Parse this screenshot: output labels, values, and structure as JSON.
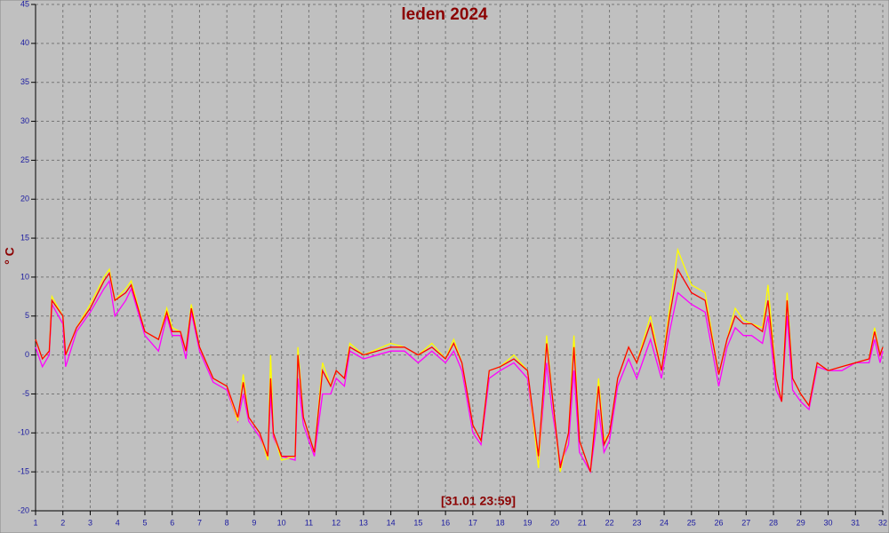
{
  "chart_data": {
    "type": "line",
    "title": "leden 2024",
    "y_label": "° C",
    "annotation": "[31.01 23:59]",
    "x": [
      1,
      1.25,
      1.5,
      1.6,
      2,
      2.1,
      2.5,
      3,
      3.5,
      3.7,
      3.9,
      4.3,
      4.5,
      5,
      5.5,
      5.8,
      6,
      6.3,
      6.5,
      6.7,
      7,
      7.5,
      8,
      8.4,
      8.6,
      8.8,
      9.2,
      9.5,
      9.6,
      9.7,
      10,
      10.5,
      10.6,
      10.8,
      11.2,
      11.5,
      11.8,
      12,
      12.3,
      12.5,
      13,
      14,
      14.5,
      15,
      15.5,
      16,
      16.3,
      16.6,
      17,
      17.3,
      17.6,
      18,
      18.5,
      19,
      19.4,
      19.7,
      19.9,
      20.2,
      20.5,
      20.7,
      20.9,
      21.3,
      21.6,
      21.8,
      22,
      22.3,
      22.7,
      23,
      23.5,
      23.9,
      24.2,
      24.5,
      25,
      25.5,
      26,
      26.3,
      26.6,
      26.9,
      27.2,
      27.6,
      27.8,
      28.1,
      28.3,
      28.5,
      28.7,
      29,
      29.3,
      29.6,
      30,
      30.5,
      31,
      31.5,
      31.7,
      31.9,
      32
    ],
    "series": [
      {
        "color": "#ff00ff",
        "values": [
          1,
          -1.5,
          0,
          6.5,
          4,
          -1.5,
          3,
          5.5,
          8.5,
          9.5,
          5,
          7,
          8.5,
          2.5,
          0.5,
          5,
          2.5,
          2.5,
          -0.5,
          5.5,
          0.5,
          -3.5,
          -4.5,
          -8.5,
          -5,
          -8.5,
          -10.5,
          -13,
          -5,
          -10.5,
          -13,
          -13.5,
          -3,
          -9,
          -13,
          -5,
          -5,
          -3,
          -4,
          0.5,
          -0.5,
          0.5,
          0.5,
          -1,
          0.5,
          -1,
          0.5,
          -2,
          -10,
          -11.5,
          -3,
          -2,
          -1,
          -3,
          -14,
          -1,
          -7,
          -14,
          -11.5,
          -2,
          -12.5,
          -15,
          -7,
          -12.5,
          -11,
          -4,
          -0.5,
          -3,
          2,
          -3,
          3,
          8,
          6.5,
          5.5,
          -4,
          1,
          3.5,
          2.5,
          2.5,
          1.5,
          5,
          -4.5,
          -6,
          5,
          -4.5,
          -6,
          -7,
          -1.5,
          -2,
          -2,
          -1,
          -1,
          2,
          -1,
          0.5
        ]
      },
      {
        "color": "#ffff00",
        "values": [
          2,
          -0.5,
          0.5,
          7.5,
          5,
          0,
          3.5,
          6.5,
          10,
          11,
          7,
          8.5,
          9.5,
          3,
          2,
          6,
          3.5,
          3,
          0.5,
          6.5,
          1,
          -3,
          -4,
          -8.5,
          -2.5,
          -8,
          -10,
          -13.5,
          0,
          -10,
          -13.5,
          -13,
          1,
          -8,
          -12.5,
          -1,
          -4,
          -2,
          -3,
          1.5,
          0,
          1.5,
          1,
          0,
          1.5,
          -0.5,
          2,
          -1,
          -9,
          -11,
          -2,
          -1.5,
          0,
          -2,
          -14.5,
          2.5,
          -5,
          -15,
          -10,
          2.5,
          -11,
          -15,
          -3,
          -11,
          -10,
          -3,
          1,
          -1,
          5,
          -2,
          6,
          13.5,
          9,
          8,
          -2.5,
          2,
          6,
          4.5,
          4,
          3.5,
          9,
          -3,
          -6,
          8,
          -3,
          -5,
          -6.5,
          -1,
          -2,
          -1.5,
          -1,
          -0.5,
          3.5,
          0,
          1
        ]
      },
      {
        "color": "#ff0000",
        "values": [
          2,
          -0.5,
          0.5,
          7,
          5,
          0,
          3.5,
          6,
          9.5,
          10.5,
          7,
          8,
          9,
          3,
          2,
          5.5,
          3,
          3,
          0.5,
          6,
          1,
          -3,
          -4,
          -8,
          -3.5,
          -8,
          -10,
          -13,
          -3,
          -10,
          -13,
          -13,
          0,
          -8,
          -12.5,
          -2,
          -4,
          -2,
          -3,
          1,
          0,
          1,
          1,
          0,
          1,
          -0.5,
          1.5,
          -1,
          -9,
          -11,
          -2,
          -1.5,
          -0.5,
          -2,
          -13,
          1.5,
          -5,
          -14.5,
          -10,
          1,
          -11,
          -15,
          -4,
          -11.5,
          -10,
          -3,
          1,
          -1,
          4,
          -2,
          5,
          11,
          8,
          7,
          -2.5,
          2,
          5,
          4,
          4,
          3,
          7,
          -3,
          -6,
          7,
          -3,
          -5,
          -6.5,
          -1,
          -2,
          -1.5,
          -1,
          -0.5,
          3,
          0,
          1
        ]
      }
    ],
    "xlim": [
      1,
      32
    ],
    "xticks": [
      1,
      2,
      3,
      4,
      5,
      6,
      7,
      8,
      9,
      10,
      11,
      12,
      13,
      14,
      15,
      16,
      17,
      18,
      19,
      20,
      21,
      22,
      23,
      24,
      25,
      26,
      27,
      28,
      29,
      30,
      31,
      32
    ],
    "ylim": [
      -20,
      45
    ],
    "yticks": [
      -20,
      -15,
      -10,
      -5,
      0,
      5,
      10,
      15,
      20,
      25,
      30,
      35,
      40,
      45
    ],
    "grid": true
  }
}
